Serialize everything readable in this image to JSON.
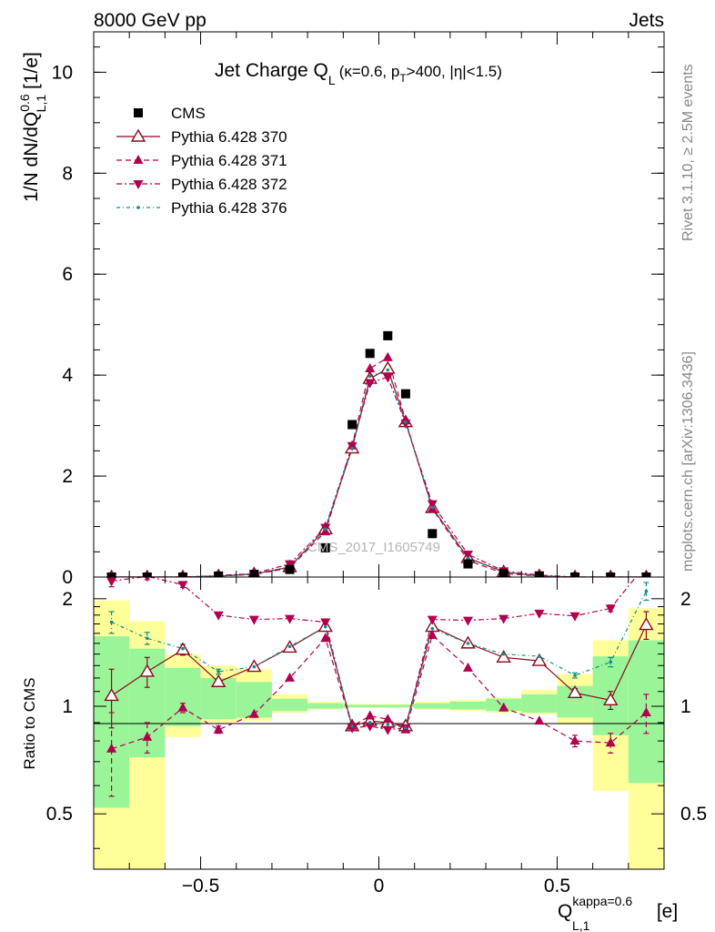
{
  "header": {
    "left": "8000 GeV pp",
    "right": "Jets"
  },
  "side_labels": {
    "rivet": "Rivet 3.1.10, ≥ 2.5M events",
    "mcplots": "mcplots.cern.ch [arXiv:1306.3436]"
  },
  "watermark": "CMS_2017_I1605749",
  "colors": {
    "cms": "#000000",
    "p370": "#8b0a1e",
    "p371": "#b2004e",
    "p372": "#b2004e",
    "p376": "#0f8f87",
    "band_yellow": "#ffff9a",
    "band_green": "#99f598"
  },
  "chart_data": [
    {
      "type": "scatter",
      "panel": "main",
      "title": {
        "main": "Jet Charge Q",
        "main_sub": "L",
        "params_a": "(κ=0.6, p",
        "params_sub": "T",
        "params_b": ">400, |η|<1.5)"
      },
      "ylabel": {
        "a": "1/N dN/dQ",
        "sup": "0.6",
        "sub": "L,1",
        "b": " [1/e]"
      },
      "xlim": [
        -0.8,
        0.8
      ],
      "ylim": [
        0,
        10.8
      ],
      "yticks": [
        0,
        2,
        4,
        6,
        8,
        10
      ],
      "legend_position": "top-left",
      "legend": [
        {
          "key": "cms",
          "label": "CMS"
        },
        {
          "key": "p370",
          "label": "Pythia 6.428 370"
        },
        {
          "key": "p371",
          "label": "Pythia 6.428 371"
        },
        {
          "key": "p372",
          "label": "Pythia 6.428 372"
        },
        {
          "key": "p376",
          "label": "Pythia 6.428 376"
        }
      ],
      "x": [
        -0.75,
        -0.65,
        -0.55,
        -0.45,
        -0.35,
        -0.25,
        -0.15,
        -0.075,
        -0.025,
        0.025,
        0.075,
        0.15,
        0.25,
        0.35,
        0.45,
        0.55,
        0.65,
        0.75
      ],
      "series": [
        {
          "key": "cms",
          "name": "CMS",
          "values": [
            0.0,
            0.0,
            0.0,
            0.02,
            0.05,
            0.15,
            0.58,
            3.02,
            4.43,
            4.78,
            3.63,
            0.86,
            0.26,
            0.07,
            0.02,
            0.0,
            0.0,
            0.0
          ]
        },
        {
          "key": "p370",
          "name": "Pythia 6.428 370",
          "values": [
            0.0,
            0.0,
            0.0,
            0.02,
            0.06,
            0.2,
            0.95,
            2.55,
            3.93,
            4.13,
            3.07,
            1.37,
            0.38,
            0.1,
            0.02,
            0.0,
            0.0,
            0.0
          ]
        },
        {
          "key": "p371",
          "name": "Pythia 6.428 371",
          "values": [
            0.0,
            0.0,
            0.0,
            0.02,
            0.05,
            0.18,
            0.9,
            2.6,
            4.13,
            4.35,
            3.1,
            1.35,
            0.33,
            0.07,
            0.02,
            0.0,
            0.0,
            0.0
          ]
        },
        {
          "key": "p372",
          "name": "Pythia 6.428 372",
          "values": [
            0.0,
            0.0,
            0.0,
            0.03,
            0.07,
            0.26,
            0.98,
            2.6,
            3.85,
            3.96,
            3.05,
            1.45,
            0.45,
            0.12,
            0.04,
            0.0,
            0.0,
            0.0
          ]
        },
        {
          "key": "p376",
          "name": "Pythia 6.428 376",
          "values": [
            0.0,
            0.0,
            0.0,
            0.02,
            0.06,
            0.19,
            0.95,
            2.55,
            3.98,
            4.1,
            3.07,
            1.38,
            0.37,
            0.1,
            0.02,
            0.0,
            0.0,
            0.0
          ]
        }
      ]
    },
    {
      "type": "line",
      "panel": "ratio",
      "ylabel": "Ratio to CMS",
      "xlabel": {
        "a": "Q",
        "sup": "kappa=0.6",
        "sub": "L,1",
        "b": " [e]"
      },
      "xlim": [
        -0.8,
        0.8
      ],
      "ylim": [
        0.35,
        2.3
      ],
      "yticks": [
        0.5,
        1,
        2
      ],
      "xticks": [
        -0.5,
        0,
        0.5
      ],
      "bins": [
        [
          -0.8,
          -0.7
        ],
        [
          -0.7,
          -0.6
        ],
        [
          -0.6,
          -0.5
        ],
        [
          -0.5,
          -0.4
        ],
        [
          -0.4,
          -0.3
        ],
        [
          -0.3,
          -0.2
        ],
        [
          -0.2,
          -0.1
        ],
        [
          -0.1,
          -0.05
        ],
        [
          -0.05,
          0.0
        ],
        [
          0.0,
          0.05
        ],
        [
          0.05,
          0.1
        ],
        [
          0.1,
          0.2
        ],
        [
          0.2,
          0.3
        ],
        [
          0.3,
          0.4
        ],
        [
          0.4,
          0.5
        ],
        [
          0.5,
          0.6
        ],
        [
          0.6,
          0.7
        ],
        [
          0.7,
          0.8
        ]
      ],
      "band_yellow": [
        [
          0.35,
          1.98
        ],
        [
          0.35,
          1.73
        ],
        [
          0.82,
          1.4
        ],
        [
          0.9,
          1.3
        ],
        [
          0.91,
          1.27
        ],
        [
          0.96,
          1.08
        ],
        [
          0.98,
          1.03
        ],
        [
          0.99,
          1.015
        ],
        [
          0.99,
          1.015
        ],
        [
          0.99,
          1.015
        ],
        [
          0.99,
          1.015
        ],
        [
          0.98,
          1.03
        ],
        [
          0.97,
          1.04
        ],
        [
          0.96,
          1.06
        ],
        [
          0.95,
          1.11
        ],
        [
          0.89,
          1.23
        ],
        [
          0.58,
          1.53
        ],
        [
          0.35,
          1.88
        ]
      ],
      "band_green": [
        [
          0.52,
          1.57
        ],
        [
          0.72,
          1.45
        ],
        [
          0.88,
          1.28
        ],
        [
          0.92,
          1.2
        ],
        [
          0.93,
          1.17
        ],
        [
          0.97,
          1.05
        ],
        [
          0.985,
          1.02
        ],
        [
          0.993,
          1.01
        ],
        [
          0.993,
          1.01
        ],
        [
          0.993,
          1.01
        ],
        [
          0.993,
          1.01
        ],
        [
          0.985,
          1.02
        ],
        [
          0.98,
          1.03
        ],
        [
          0.97,
          1.05
        ],
        [
          0.96,
          1.08
        ],
        [
          0.93,
          1.14
        ],
        [
          0.83,
          1.38
        ],
        [
          0.61,
          1.53
        ]
      ],
      "x": [
        -0.75,
        -0.65,
        -0.55,
        -0.45,
        -0.35,
        -0.25,
        -0.15,
        -0.075,
        -0.025,
        0.025,
        0.075,
        0.15,
        0.25,
        0.35,
        0.45,
        0.55,
        0.65,
        0.75
      ],
      "series": [
        {
          "key": "p370",
          "name": "Pythia 6.428 370",
          "values": [
            1.07,
            1.25,
            1.44,
            1.17,
            1.29,
            1.46,
            1.67,
            0.88,
            0.91,
            0.9,
            0.88,
            1.67,
            1.5,
            1.37,
            1.34,
            1.09,
            1.04,
            1.69
          ],
          "err": [
            0.2,
            0.12,
            0.05,
            0.02,
            0.02,
            0.01,
            0.01,
            0.01,
            0.01,
            0.01,
            0.01,
            0.01,
            0.01,
            0.02,
            0.02,
            0.03,
            0.06,
            0.15
          ]
        },
        {
          "key": "p371",
          "name": "Pythia 6.428 371",
          "values": [
            0.76,
            0.82,
            0.99,
            0.86,
            0.95,
            1.2,
            1.55,
            0.88,
            0.94,
            0.92,
            0.86,
            1.58,
            1.28,
            0.99,
            0.91,
            0.8,
            0.79,
            0.96
          ],
          "err": [
            0.2,
            0.08,
            0.03,
            0.02,
            0.01,
            0.01,
            0.01,
            0.01,
            0.01,
            0.01,
            0.01,
            0.01,
            0.01,
            0.01,
            0.01,
            0.03,
            0.05,
            0.12
          ]
        },
        {
          "key": "p372",
          "name": "Pythia 6.428 372",
          "values": [
            2.24,
            2.31,
            2.19,
            1.8,
            1.75,
            1.76,
            1.72,
            0.87,
            0.88,
            0.86,
            0.87,
            1.75,
            1.74,
            1.76,
            1.82,
            1.79,
            1.88,
            2.5
          ],
          "err": [
            0.08,
            0.05,
            0.04,
            0.02,
            0.01,
            0.01,
            0.01,
            0.01,
            0.01,
            0.01,
            0.01,
            0.01,
            0.01,
            0.01,
            0.01,
            0.02,
            0.04,
            0.1
          ]
        },
        {
          "key": "p376",
          "name": "Pythia 6.428 376",
          "values": [
            1.72,
            1.55,
            1.45,
            1.25,
            1.29,
            1.47,
            1.67,
            0.88,
            0.9,
            0.89,
            0.87,
            1.65,
            1.5,
            1.4,
            1.38,
            1.22,
            1.33,
            2.1
          ],
          "err": [
            0.12,
            0.06,
            0.04,
            0.02,
            0.01,
            0.01,
            0.01,
            0.01,
            0.01,
            0.01,
            0.01,
            0.01,
            0.01,
            0.01,
            0.01,
            0.02,
            0.04,
            0.12
          ]
        }
      ]
    }
  ]
}
